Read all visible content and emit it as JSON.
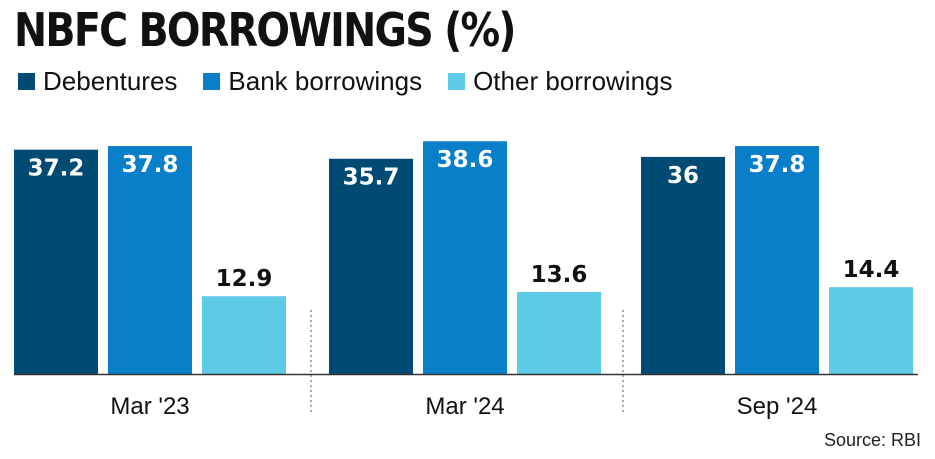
{
  "chart_data": {
    "type": "bar",
    "title": "NBFC BORROWINGS (%)",
    "categories": [
      "Mar '23",
      "Mar '24",
      "Sep '24"
    ],
    "series": [
      {
        "name": "Debentures",
        "color": "#004b73",
        "values": [
          37.2,
          35.7,
          36
        ]
      },
      {
        "name": "Bank borrowings",
        "color": "#0a7fc9",
        "values": [
          37.8,
          38.6,
          37.8
        ]
      },
      {
        "name": "Other borrowings",
        "color": "#5dcbe6",
        "values": [
          12.9,
          13.6,
          14.4
        ]
      }
    ],
    "value_labels": [
      [
        "37.2",
        "35.7",
        "36"
      ],
      [
        "37.8",
        "38.6",
        "37.8"
      ],
      [
        "12.9",
        "13.6",
        "14.4"
      ]
    ],
    "ylim": [
      0,
      40
    ],
    "legend_position": "top-left",
    "grid": false
  },
  "source": "Source: RBI"
}
